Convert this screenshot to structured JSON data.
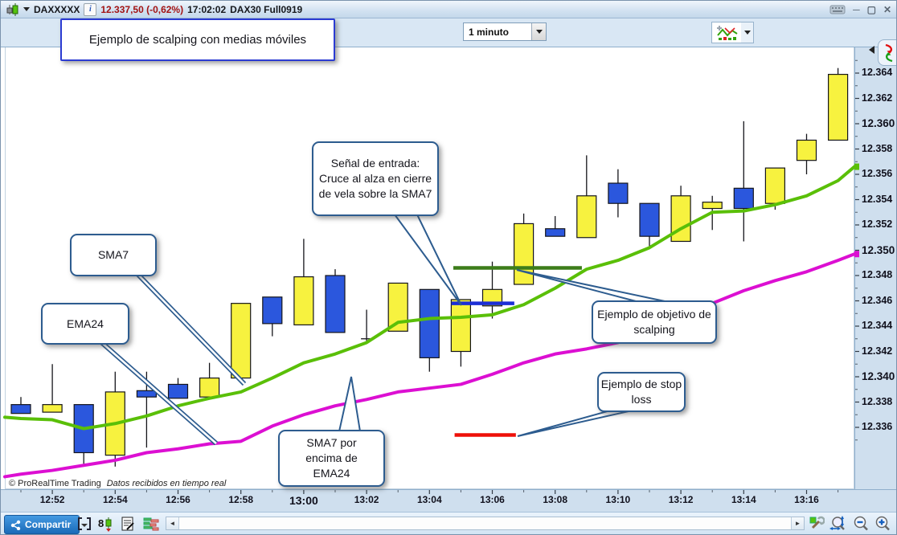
{
  "titlebar": {
    "symbol": "DAXXXXX",
    "price_change": "12.337,50 (-0,62%)",
    "time": "17:02:02",
    "contract": "DAX30 Full0919"
  },
  "toolbar": {
    "timeframe": "1 minuto"
  },
  "callouts": {
    "title": "Ejemplo de scalping con medias móviles",
    "sma7": "SMA7",
    "ema24": "EMA24",
    "entry_signal": "Señal de entrada: Cruce al alza en cierre de vela sobre la SMA7",
    "target": "Ejemplo de objetivo de scalping",
    "stop": "Ejemplo de stop loss",
    "ma_above": "SMA7 por encima de EMA24"
  },
  "footer": {
    "share": "Compartir",
    "copyright": "© ProRealTime Trading",
    "realtime": "Datos recibidos en tiempo real"
  },
  "chart_data": {
    "type": "candlestick",
    "title": "DAX30 Full0919 — 1 minuto",
    "colors": {
      "up": "#f7f23f",
      "down": "#2b57dd",
      "sma7": "#5abf08",
      "ema24": "#dc0fd2",
      "entry": "#1b2ed6",
      "target": "#3c7d1a",
      "stop": "#ee1009"
    },
    "y_axis": {
      "min": 12334,
      "max": 12366,
      "ticks": [
        12336,
        12338,
        12340,
        12342,
        12344,
        12346,
        12348,
        12350,
        12352,
        12354,
        12356,
        12358,
        12360,
        12362,
        12364
      ],
      "bold_ticks": [
        12340,
        12350,
        12360
      ]
    },
    "x_axis": {
      "labels": [
        "12:52",
        "12:54",
        "12:56",
        "12:58",
        "13:00",
        "13:02",
        "13:04",
        "13:06",
        "13:08",
        "13:10",
        "13:12",
        "13:14",
        "13:16"
      ],
      "bold_label": "13:00"
    },
    "candles": [
      {
        "t": "12:51",
        "o": 12337.8,
        "h": 12338.4,
        "l": 12337.1,
        "c": 12337.1,
        "dir": "down"
      },
      {
        "t": "12:52",
        "o": 12337.2,
        "h": 12341.0,
        "l": 12337.2,
        "c": 12337.8,
        "dir": "up"
      },
      {
        "t": "12:53",
        "o": 12337.8,
        "h": 12337.8,
        "l": 12333.0,
        "c": 12334.0,
        "dir": "down"
      },
      {
        "t": "12:54",
        "o": 12333.8,
        "h": 12340.4,
        "l": 12332.9,
        "c": 12338.8,
        "dir": "up"
      },
      {
        "t": "12:55",
        "o": 12338.9,
        "h": 12340.4,
        "l": 12334.4,
        "c": 12338.4,
        "dir": "down"
      },
      {
        "t": "12:56",
        "o": 12339.4,
        "h": 12339.9,
        "l": 12338.3,
        "c": 12338.3,
        "dir": "down"
      },
      {
        "t": "12:57",
        "o": 12338.4,
        "h": 12341.1,
        "l": 12338.4,
        "c": 12339.9,
        "dir": "up"
      },
      {
        "t": "12:58",
        "o": 12339.9,
        "h": 12345.8,
        "l": 12339.9,
        "c": 12345.8,
        "dir": "up"
      },
      {
        "t": "12:59",
        "o": 12346.3,
        "h": 12346.3,
        "l": 12343.2,
        "c": 12344.2,
        "dir": "down"
      },
      {
        "t": "13:00",
        "o": 12344.1,
        "h": 12350.9,
        "l": 12344.1,
        "c": 12347.9,
        "dir": "up"
      },
      {
        "t": "13:01",
        "o": 12348.0,
        "h": 12348.5,
        "l": 12343.5,
        "c": 12343.5,
        "dir": "down"
      },
      {
        "t": "13:02",
        "o": 12343.0,
        "h": 12345.3,
        "l": 12342.6,
        "c": 12343.0,
        "dir": "doji"
      },
      {
        "t": "13:03",
        "o": 12343.6,
        "h": 12347.4,
        "l": 12343.6,
        "c": 12347.4,
        "dir": "up"
      },
      {
        "t": "13:04",
        "o": 12346.9,
        "h": 12346.9,
        "l": 12340.4,
        "c": 12341.5,
        "dir": "down"
      },
      {
        "t": "13:05",
        "o": 12342.0,
        "h": 12346.1,
        "l": 12340.8,
        "c": 12346.1,
        "dir": "up"
      },
      {
        "t": "13:06",
        "o": 12345.6,
        "h": 12349.1,
        "l": 12344.6,
        "c": 12346.9,
        "dir": "up"
      },
      {
        "t": "13:07",
        "o": 12347.3,
        "h": 12352.9,
        "l": 12347.3,
        "c": 12352.1,
        "dir": "up"
      },
      {
        "t": "13:08",
        "o": 12351.7,
        "h": 12352.7,
        "l": 12351.1,
        "c": 12351.1,
        "dir": "down"
      },
      {
        "t": "13:09",
        "o": 12351.0,
        "h": 12357.5,
        "l": 12351.0,
        "c": 12354.3,
        "dir": "up"
      },
      {
        "t": "13:10",
        "o": 12355.3,
        "h": 12356.4,
        "l": 12352.6,
        "c": 12353.7,
        "dir": "down"
      },
      {
        "t": "13:11",
        "o": 12353.7,
        "h": 12353.7,
        "l": 12350.2,
        "c": 12351.1,
        "dir": "down"
      },
      {
        "t": "13:12",
        "o": 12350.7,
        "h": 12355.1,
        "l": 12350.7,
        "c": 12354.3,
        "dir": "up"
      },
      {
        "t": "13:13",
        "o": 12353.3,
        "h": 12354.3,
        "l": 12351.6,
        "c": 12353.8,
        "dir": "up"
      },
      {
        "t": "13:14",
        "o": 12354.9,
        "h": 12360.2,
        "l": 12350.7,
        "c": 12353.3,
        "dir": "down"
      },
      {
        "t": "13:15",
        "o": 12353.7,
        "h": 12356.5,
        "l": 12353.2,
        "c": 12356.5,
        "dir": "up"
      },
      {
        "t": "13:16",
        "o": 12357.1,
        "h": 12359.2,
        "l": 12356.0,
        "c": 12358.7,
        "dir": "up"
      },
      {
        "t": "13:17",
        "o": 12358.7,
        "h": 12364.4,
        "l": 12358.7,
        "c": 12363.9,
        "dir": "up"
      }
    ],
    "overlays": [
      {
        "name": "SMA7",
        "color": "#5abf08",
        "left_edge": 12336.8,
        "right_edge": 12356.6,
        "values": [
          12336.7,
          12336.6,
          12335.9,
          12336.3,
          12336.9,
          12337.7,
          12338.3,
          12338.8,
          12339.9,
          12341.1,
          12341.8,
          12342.7,
          12344.3,
          12344.6,
          12344.7,
          12344.9,
          12345.7,
          12347.0,
          12348.5,
          12349.2,
          12350.2,
          12351.7,
          12353.0,
          12353.1,
          12353.6,
          12354.3,
          12355.5
        ]
      },
      {
        "name": "EMA24",
        "color": "#dc0fd2",
        "left_edge": 12332.1,
        "right_edge": 12349.7,
        "values": [
          12332.3,
          12332.6,
          12333.0,
          12333.4,
          12334.0,
          12334.3,
          12334.7,
          12334.9,
          12336.1,
          12337.0,
          12337.7,
          12338.2,
          12338.8,
          12339.1,
          12339.4,
          12340.2,
          12341.1,
          12341.8,
          12342.2,
          12342.7,
          12343.8,
          12344.7,
          12345.8,
          12346.8,
          12347.6,
          12348.3,
          12349.2
        ]
      }
    ],
    "levels": [
      {
        "name": "entry",
        "price": 12345.8,
        "from": 13.7,
        "to": 15.7,
        "color": "#1b2ed6"
      },
      {
        "name": "target",
        "price": 12348.6,
        "from": 13.76,
        "to": 17.85,
        "color": "#3c7d1a"
      },
      {
        "name": "stop",
        "price": 12335.4,
        "from": 13.8,
        "to": 15.75,
        "color": "#ee1009"
      }
    ]
  }
}
